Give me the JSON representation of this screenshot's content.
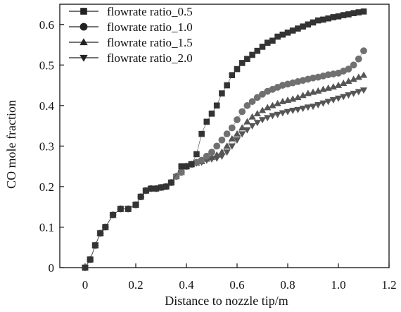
{
  "chart_data": {
    "type": "scatter",
    "title": "",
    "xlabel": "Distance to nozzle tip/m",
    "ylabel": "CO mole fraction",
    "xlim": [
      -0.1,
      1.2
    ],
    "ylim": [
      0,
      0.65
    ],
    "xticks": [
      0,
      0.2,
      0.4,
      0.6,
      0.8,
      1.0,
      1.2
    ],
    "xtick_labels": [
      "0",
      "0.2",
      "0.4",
      "0.6",
      "0.8",
      "1.0",
      "1.2"
    ],
    "yticks": [
      0,
      0.1,
      0.2,
      0.3,
      0.4,
      0.5,
      0.6
    ],
    "ytick_labels": [
      "0",
      "0.1",
      "0.2",
      "0.3",
      "0.4",
      "0.5",
      "0.6"
    ],
    "grid": false,
    "legend_position": "top-left",
    "series": [
      {
        "name": "flowrate ratio_0.5",
        "marker": "square",
        "color": "#333333",
        "x": [
          0,
          0.02,
          0.04,
          0.06,
          0.08,
          0.11,
          0.14,
          0.17,
          0.2,
          0.22,
          0.24,
          0.26,
          0.28,
          0.3,
          0.32,
          0.34,
          0.38,
          0.4,
          0.42,
          0.44,
          0.46,
          0.48,
          0.5,
          0.52,
          0.54,
          0.56,
          0.58,
          0.6,
          0.62,
          0.64,
          0.66,
          0.68,
          0.7,
          0.72,
          0.74,
          0.76,
          0.78,
          0.8,
          0.82,
          0.84,
          0.86,
          0.88,
          0.9,
          0.92,
          0.94,
          0.96,
          0.98,
          1.0,
          1.02,
          1.04,
          1.06,
          1.08,
          1.1
        ],
        "y": [
          0,
          0.02,
          0.055,
          0.085,
          0.1,
          0.13,
          0.145,
          0.145,
          0.155,
          0.175,
          0.19,
          0.195,
          0.195,
          0.198,
          0.2,
          0.21,
          0.25,
          0.25,
          0.255,
          0.28,
          0.33,
          0.36,
          0.38,
          0.4,
          0.43,
          0.45,
          0.475,
          0.49,
          0.505,
          0.515,
          0.525,
          0.535,
          0.545,
          0.555,
          0.56,
          0.57,
          0.575,
          0.58,
          0.585,
          0.59,
          0.595,
          0.6,
          0.605,
          0.61,
          0.612,
          0.615,
          0.618,
          0.62,
          0.623,
          0.625,
          0.628,
          0.63,
          0.632
        ]
      },
      {
        "name": "flowrate ratio_1.0",
        "marker": "circle",
        "color": "#707070",
        "x": [
          0,
          0.02,
          0.04,
          0.06,
          0.08,
          0.11,
          0.14,
          0.17,
          0.2,
          0.22,
          0.24,
          0.26,
          0.28,
          0.3,
          0.32,
          0.34,
          0.36,
          0.38,
          0.4,
          0.42,
          0.44,
          0.46,
          0.48,
          0.5,
          0.52,
          0.54,
          0.56,
          0.58,
          0.6,
          0.62,
          0.64,
          0.66,
          0.68,
          0.7,
          0.72,
          0.74,
          0.76,
          0.78,
          0.8,
          0.82,
          0.84,
          0.86,
          0.88,
          0.9,
          0.92,
          0.94,
          0.96,
          0.98,
          1.0,
          1.02,
          1.04,
          1.06,
          1.08,
          1.1
        ],
        "y": [
          0,
          0.02,
          0.055,
          0.085,
          0.1,
          0.13,
          0.145,
          0.145,
          0.155,
          0.175,
          0.19,
          0.195,
          0.195,
          0.198,
          0.2,
          0.21,
          0.225,
          0.235,
          0.25,
          0.255,
          0.26,
          0.265,
          0.275,
          0.285,
          0.3,
          0.315,
          0.33,
          0.345,
          0.365,
          0.385,
          0.4,
          0.41,
          0.42,
          0.428,
          0.435,
          0.44,
          0.445,
          0.45,
          0.453,
          0.456,
          0.459,
          0.462,
          0.465,
          0.468,
          0.47,
          0.473,
          0.476,
          0.478,
          0.48,
          0.485,
          0.49,
          0.5,
          0.515,
          0.535
        ]
      },
      {
        "name": "flowrate ratio_1.5",
        "marker": "triangle-up",
        "color": "#555555",
        "x": [
          0,
          0.02,
          0.04,
          0.06,
          0.08,
          0.11,
          0.14,
          0.17,
          0.2,
          0.22,
          0.24,
          0.26,
          0.28,
          0.3,
          0.32,
          0.34,
          0.36,
          0.38,
          0.4,
          0.42,
          0.44,
          0.46,
          0.48,
          0.5,
          0.52,
          0.54,
          0.56,
          0.58,
          0.6,
          0.62,
          0.64,
          0.66,
          0.68,
          0.7,
          0.72,
          0.74,
          0.76,
          0.78,
          0.8,
          0.82,
          0.84,
          0.86,
          0.88,
          0.9,
          0.92,
          0.94,
          0.96,
          0.98,
          1.0,
          1.02,
          1.04,
          1.06,
          1.08,
          1.1
        ],
        "y": [
          0,
          0.02,
          0.055,
          0.085,
          0.1,
          0.13,
          0.145,
          0.145,
          0.155,
          0.175,
          0.19,
          0.195,
          0.195,
          0.198,
          0.2,
          0.21,
          0.225,
          0.235,
          0.25,
          0.255,
          0.258,
          0.262,
          0.268,
          0.272,
          0.278,
          0.285,
          0.3,
          0.318,
          0.33,
          0.345,
          0.36,
          0.372,
          0.38,
          0.388,
          0.395,
          0.4,
          0.405,
          0.41,
          0.413,
          0.416,
          0.42,
          0.425,
          0.43,
          0.433,
          0.436,
          0.44,
          0.443,
          0.446,
          0.45,
          0.455,
          0.46,
          0.465,
          0.47,
          0.475
        ]
      },
      {
        "name": "flowrate ratio_2.0",
        "marker": "triangle-down",
        "color": "#555555",
        "x": [
          0,
          0.02,
          0.04,
          0.06,
          0.08,
          0.11,
          0.14,
          0.17,
          0.2,
          0.22,
          0.24,
          0.26,
          0.28,
          0.3,
          0.32,
          0.34,
          0.36,
          0.38,
          0.4,
          0.42,
          0.44,
          0.46,
          0.48,
          0.5,
          0.52,
          0.54,
          0.56,
          0.58,
          0.6,
          0.62,
          0.64,
          0.66,
          0.68,
          0.7,
          0.72,
          0.74,
          0.76,
          0.78,
          0.8,
          0.82,
          0.84,
          0.86,
          0.88,
          0.9,
          0.92,
          0.94,
          0.96,
          0.98,
          1.0,
          1.02,
          1.04,
          1.06,
          1.08,
          1.1
        ],
        "y": [
          0,
          0.02,
          0.055,
          0.085,
          0.1,
          0.13,
          0.145,
          0.145,
          0.155,
          0.175,
          0.19,
          0.195,
          0.195,
          0.198,
          0.2,
          0.21,
          0.225,
          0.235,
          0.25,
          0.255,
          0.258,
          0.26,
          0.265,
          0.268,
          0.27,
          0.275,
          0.285,
          0.3,
          0.315,
          0.33,
          0.34,
          0.35,
          0.358,
          0.365,
          0.37,
          0.375,
          0.378,
          0.382,
          0.385,
          0.388,
          0.39,
          0.393,
          0.396,
          0.398,
          0.402,
          0.406,
          0.41,
          0.414,
          0.418,
          0.422,
          0.426,
          0.43,
          0.434,
          0.438
        ]
      }
    ]
  }
}
